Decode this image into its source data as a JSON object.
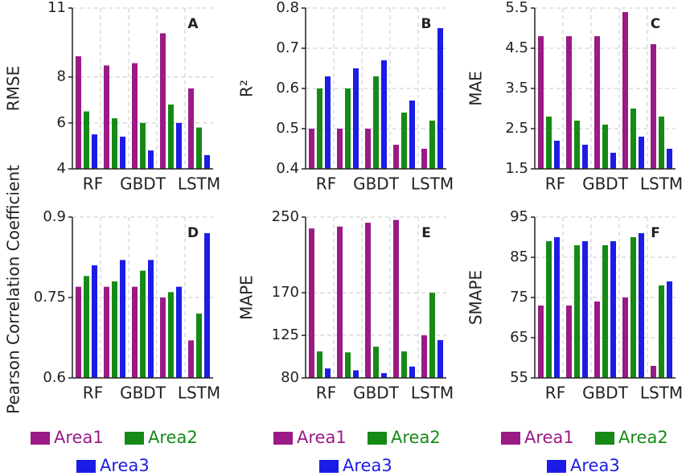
{
  "chart_data": [
    {
      "type": "bar",
      "ylabel": "RMSE",
      "annotation": "A",
      "categories": [
        "RF",
        null,
        "GBDT",
        null,
        "LSTM"
      ],
      "ylim": [
        4,
        11
      ],
      "yticks": [
        4,
        6,
        8,
        11
      ],
      "grid": true,
      "series": [
        {
          "color": "#9a1a86",
          "values": [
            8.9,
            8.5,
            8.6,
            9.9,
            7.5
          ]
        },
        {
          "color": "#168a16",
          "values": [
            6.5,
            6.2,
            6.0,
            6.8,
            5.8
          ]
        },
        {
          "color": "#1c1ce6",
          "values": [
            5.5,
            5.4,
            4.8,
            6.0,
            4.6
          ]
        }
      ]
    },
    {
      "type": "bar",
      "ylabel": "R²",
      "annotation": "B",
      "categories": [
        "RF",
        null,
        "GBDT",
        null,
        "LSTM"
      ],
      "ylim": [
        0.4,
        0.8
      ],
      "yticks": [
        0.4,
        0.5,
        0.6,
        0.7,
        0.8
      ],
      "grid": true,
      "series": [
        {
          "color": "#9a1a86",
          "values": [
            0.5,
            0.5,
            0.5,
            0.46,
            0.45
          ]
        },
        {
          "color": "#168a16",
          "values": [
            0.6,
            0.6,
            0.63,
            0.54,
            0.52
          ]
        },
        {
          "color": "#1c1ce6",
          "values": [
            0.63,
            0.65,
            0.67,
            0.57,
            0.75
          ]
        }
      ]
    },
    {
      "type": "bar",
      "ylabel": "MAE",
      "annotation": "C",
      "categories": [
        "RF",
        null,
        "GBDT",
        null,
        "LSTM"
      ],
      "ylim": [
        1.5,
        5.5
      ],
      "yticks": [
        1.5,
        2.5,
        3.5,
        4.5,
        5.5
      ],
      "grid": true,
      "series": [
        {
          "color": "#9a1a86",
          "values": [
            4.8,
            4.8,
            4.8,
            5.4,
            4.6
          ]
        },
        {
          "color": "#168a16",
          "values": [
            2.8,
            2.7,
            2.6,
            3.0,
            2.8
          ]
        },
        {
          "color": "#1c1ce6",
          "values": [
            2.2,
            2.1,
            1.9,
            2.3,
            2.0
          ]
        }
      ]
    },
    {
      "type": "bar",
      "ylabel": "Pearson Correlation Coefficient",
      "annotation": "D",
      "categories": [
        "RF",
        null,
        "GBDT",
        null,
        "LSTM"
      ],
      "ylim": [
        0.6,
        0.9
      ],
      "yticks": [
        0.6,
        0.75,
        0.9
      ],
      "grid": true,
      "series": [
        {
          "name": "Area1",
          "color": "#9a1a86",
          "values": [
            0.77,
            0.77,
            0.77,
            0.75,
            0.67
          ]
        },
        {
          "name": "Area2",
          "color": "#168a16",
          "values": [
            0.79,
            0.78,
            0.8,
            0.76,
            0.72
          ]
        },
        {
          "name": "Area3",
          "color": "#1c1ce6",
          "values": [
            0.81,
            0.82,
            0.82,
            0.77,
            0.87
          ]
        }
      ]
    },
    {
      "type": "bar",
      "ylabel": "MAPE",
      "annotation": "E",
      "categories": [
        "RF",
        null,
        "GBDT",
        null,
        "LSTM"
      ],
      "ylim": [
        80,
        250
      ],
      "yticks": [
        80,
        125,
        170,
        250
      ],
      "grid": true,
      "series": [
        {
          "name": "Area1",
          "color": "#9a1a86",
          "values": [
            238,
            240,
            244,
            247,
            125
          ]
        },
        {
          "name": "Area2",
          "color": "#168a16",
          "values": [
            108,
            107,
            113,
            108,
            170
          ]
        },
        {
          "name": "Area3",
          "color": "#1c1ce6",
          "values": [
            90,
            88,
            85,
            92,
            120
          ]
        }
      ]
    },
    {
      "type": "bar",
      "ylabel": "SMAPE",
      "annotation": "F",
      "categories": [
        "RF",
        null,
        "GBDT",
        null,
        "LSTM"
      ],
      "ylim": [
        55,
        95
      ],
      "yticks": [
        55,
        65,
        75,
        85,
        95
      ],
      "grid": true,
      "series": [
        {
          "name": "Area1",
          "color": "#9a1a86",
          "values": [
            73,
            73,
            74,
            75,
            58
          ]
        },
        {
          "name": "Area2",
          "color": "#168a16",
          "values": [
            89,
            88,
            88,
            90,
            78
          ]
        },
        {
          "name": "Area3",
          "color": "#1c1ce6",
          "values": [
            90,
            89,
            89,
            91,
            79
          ]
        }
      ]
    }
  ]
}
